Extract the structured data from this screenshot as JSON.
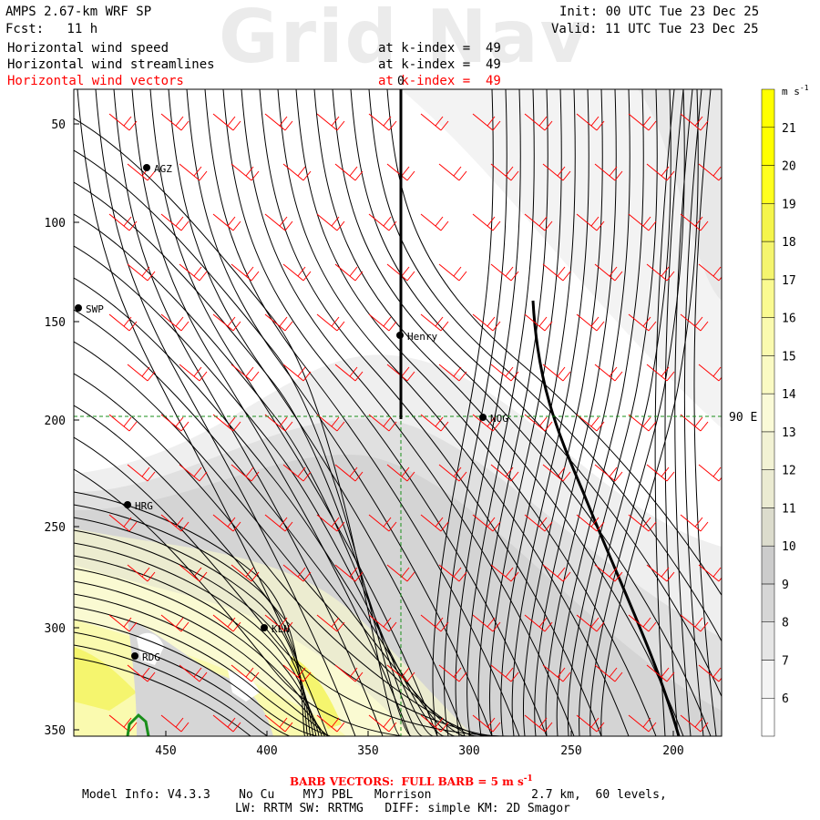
{
  "header": {
    "title": "AMPS 2.67-km WRF SP",
    "forecast": "Fcst:   11 h",
    "init": "Init: 00 UTC Tue 23 Dec 25",
    "valid": "Valid: 11 UTC Tue 23 Dec 25",
    "watermark": "Grid Nav",
    "fields": [
      {
        "name": "Horizontal wind speed",
        "level": "at k-index =  49",
        "color": "#000000"
      },
      {
        "name": "Horizontal wind streamlines",
        "level": "at k-index =  49",
        "color": "#000000"
      },
      {
        "name": "Horizontal wind vectors",
        "level": "at k-index =  49",
        "color": "#ff0000"
      }
    ]
  },
  "map": {
    "meridian_top_label": "0",
    "parallel_label": "90 E",
    "x_ticks": [
      "450",
      "400",
      "350",
      "300",
      "250",
      "200"
    ],
    "y_ticks": [
      "50",
      "100",
      "150",
      "200",
      "250",
      "300",
      "350"
    ],
    "stations": [
      "AGZ",
      "SWP",
      "Henry",
      "NOG",
      "HRG",
      "KLN",
      "RDG"
    ]
  },
  "colorbar": {
    "unit": "m s",
    "unit_sup": "-1",
    "levels": [
      "6",
      "7",
      "8",
      "9",
      "10",
      "11",
      "12",
      "13",
      "14",
      "15",
      "16",
      "17",
      "18",
      "19",
      "20",
      "21"
    ],
    "colors": [
      "#ffffff",
      "#f4f4f4",
      "#e6e6e6",
      "#d6d6d6",
      "#cccccc",
      "#dcdccd",
      "#ebebd2",
      "#f2f2d4",
      "#fafad7",
      "#fafac3",
      "#fafaaf",
      "#fafa91",
      "#f5f56e",
      "#f5f54b",
      "#ffff1e",
      "#ffff00"
    ]
  },
  "footer": {
    "barb_note": "BARB VECTORS:  FULL BARB = 5 m s",
    "barb_sup": "-1",
    "model_info": "Model Info: V4.3.3    No Cu    MYJ PBL   Morrison              2.7 km,  60 levels,",
    "physics": "LW: RRTM SW: RRTMG   DIFF: simple KM: 2D Smagor"
  }
}
